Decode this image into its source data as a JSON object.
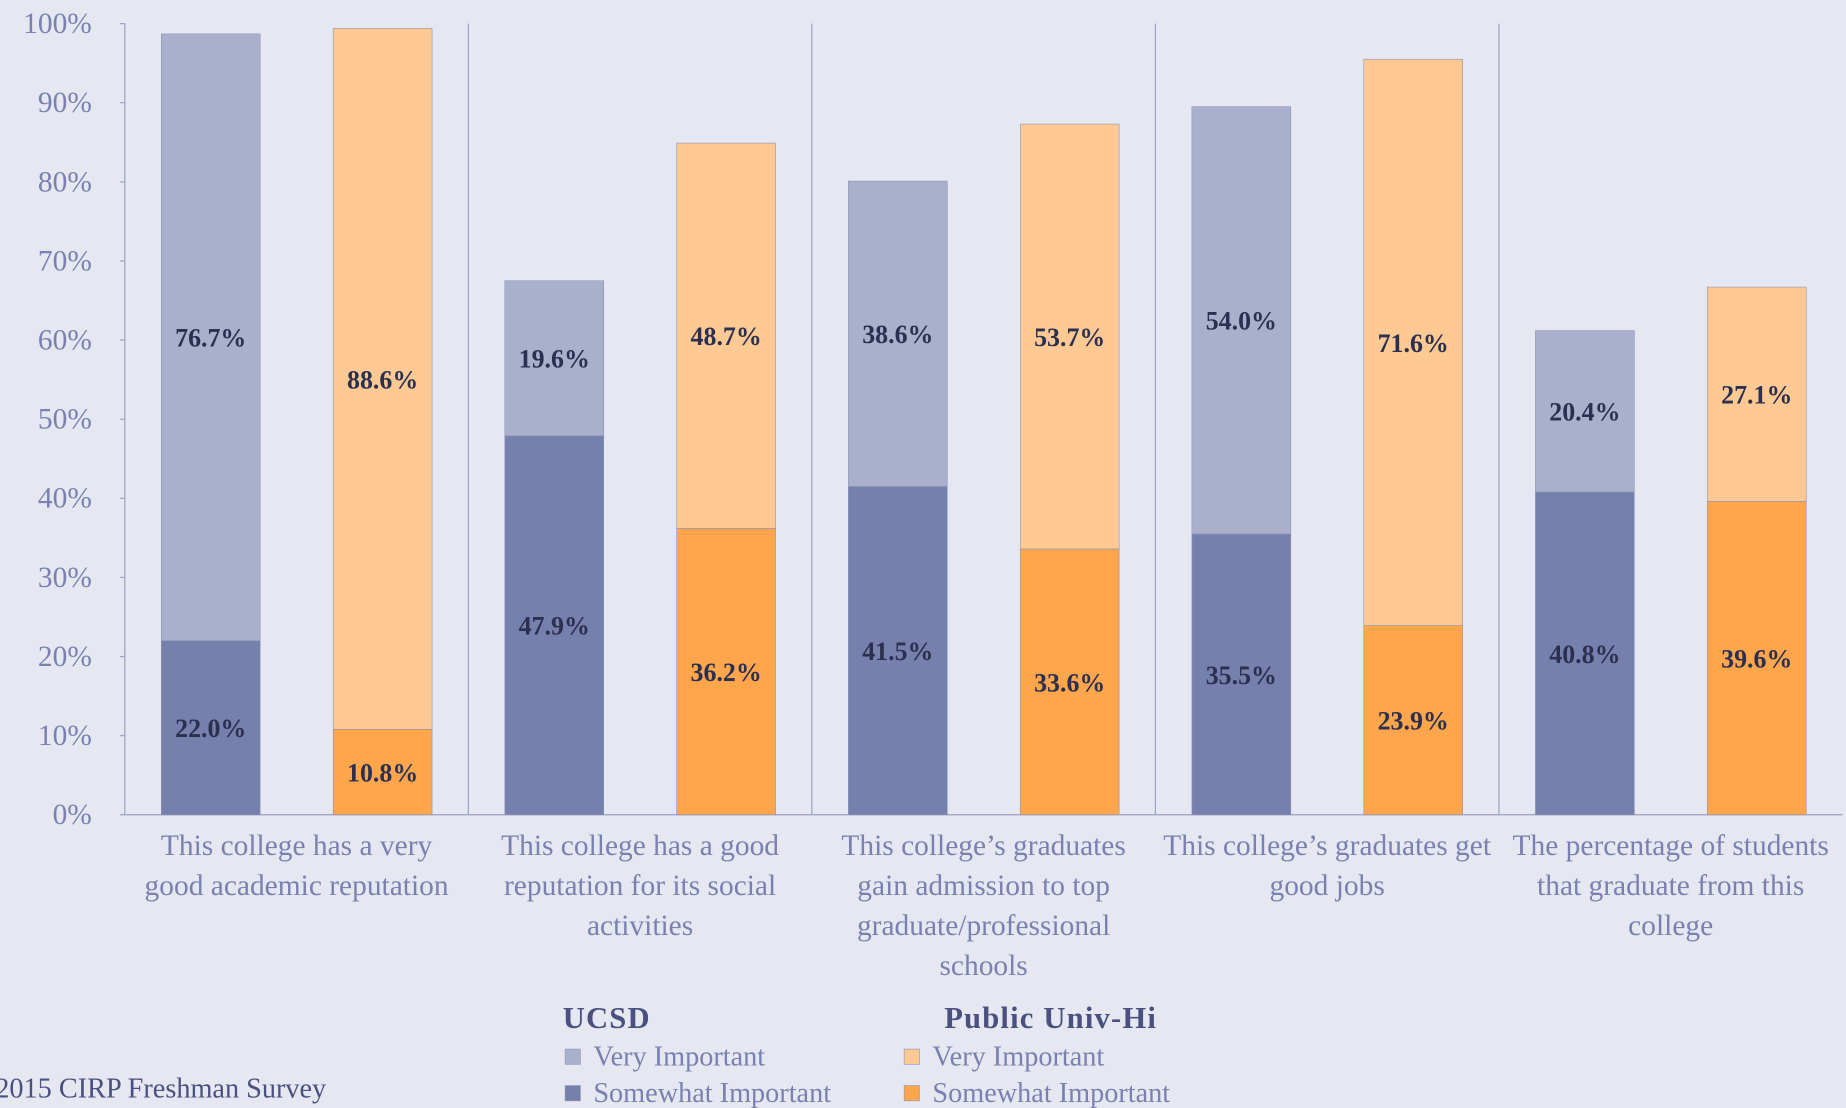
{
  "chart_data": {
    "type": "bar",
    "stacked": true,
    "categories": [
      "This college has a very good academic reputation",
      "This college has a good reputation for its social activities",
      "This college’s graduates gain admission to top graduate/professional schools",
      "This college’s graduates get good jobs",
      "The percentage of students that graduate from this college"
    ],
    "groups": [
      {
        "name": "UCSD",
        "series": [
          {
            "name": "Very Important",
            "color": "#aab0cc",
            "values": [
              76.7,
              19.6,
              38.6,
              54.0,
              20.4
            ],
            "value_labels": [
              "76.7%",
              "19.6%",
              "38.6%",
              "54.0%",
              "20.4%"
            ]
          },
          {
            "name": "Somewhat Important",
            "color": "#7680ac",
            "values": [
              22.0,
              47.9,
              41.5,
              35.5,
              40.8
            ],
            "value_labels": [
              "22.0%",
              "47.9%",
              "41.5%",
              "35.5%",
              "40.8%"
            ]
          }
        ]
      },
      {
        "name": "Public Univ-Hi",
        "series": [
          {
            "name": "Very Important",
            "color": "#ffc993",
            "values": [
              88.6,
              48.7,
              53.7,
              71.6,
              27.1
            ],
            "value_labels": [
              "88.6%",
              "48.7%",
              "53.7%",
              "71.6%",
              "27.1%"
            ]
          },
          {
            "name": "Somewhat Important",
            "color": "#ffa64d",
            "values": [
              10.8,
              36.2,
              33.6,
              23.9,
              39.6
            ],
            "value_labels": [
              "10.8%",
              "36.2%",
              "33.6%",
              "23.9%",
              "39.6%"
            ]
          }
        ]
      }
    ],
    "ylim": [
      0,
      100
    ],
    "yticks": [
      {
        "value": 0,
        "label": "0%"
      },
      {
        "value": 10,
        "label": "10%"
      },
      {
        "value": 20,
        "label": "20%"
      },
      {
        "value": 30,
        "label": "30%"
      },
      {
        "value": 40,
        "label": "40%"
      },
      {
        "value": 50,
        "label": "50%"
      },
      {
        "value": 60,
        "label": "60%"
      },
      {
        "value": 70,
        "label": "70%"
      },
      {
        "value": 80,
        "label": "80%"
      },
      {
        "value": 90,
        "label": "90%"
      },
      {
        "value": 100,
        "label": "100%"
      }
    ],
    "source": "2015 CIRP Freshman Survey"
  }
}
